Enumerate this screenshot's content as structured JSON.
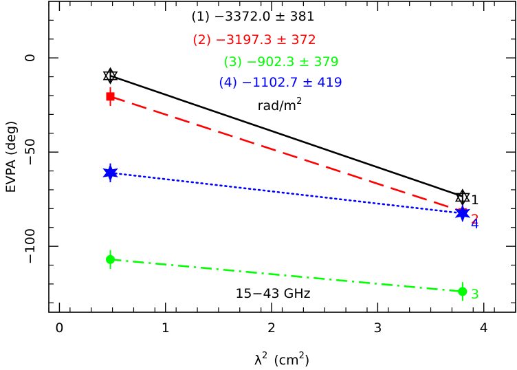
{
  "chart_data": {
    "type": "line",
    "title": "",
    "xlabel": {
      "base": "λ",
      "sup": "2",
      "unit_base": "(cm",
      "unit_sup": "2",
      "unit_close": ")"
    },
    "ylabel": "EVPA (deg)",
    "xlim": [
      -0.1,
      4.3
    ],
    "ylim": [
      -135,
      30
    ],
    "x_ticks": [
      0,
      1,
      2,
      3,
      4
    ],
    "x_tick_labels": [
      "0",
      "1",
      "2",
      "3",
      "4"
    ],
    "y_ticks": [
      0,
      -50,
      -100
    ],
    "y_tick_labels": [
      "0",
      "−50",
      "−100"
    ],
    "grid": false,
    "annotation": "15−43 GHz",
    "rm_unit": {
      "base": "rad/m",
      "sup": "2"
    },
    "series": [
      {
        "label": "1",
        "rm": "(1) −3372.0 ± 381",
        "color": "#000000",
        "dash": "solid",
        "marker": "star6-open",
        "x": [
          0.48,
          3.8
        ],
        "y": [
          -9.5,
          -74
        ],
        "yerr": [
          4,
          4
        ],
        "fit_y": [
          -9.5,
          -73.5
        ]
      },
      {
        "label": "2",
        "rm": "(2) −3197.3 ± 372",
        "color": "#ff0000",
        "dash": "dashed",
        "marker": "square",
        "x": [
          0.48,
          3.8
        ],
        "y": [
          -20.5,
          -82
        ],
        "yerr": [
          5,
          4
        ],
        "fit_y": [
          -20.5,
          -81.5
        ]
      },
      {
        "label": "3",
        "rm": "(3) −902.3 ± 379",
        "color": "#00ff00",
        "dash": "dashdot",
        "marker": "circle",
        "x": [
          0.48,
          3.8
        ],
        "y": [
          -107,
          -124
        ],
        "yerr": [
          5,
          5
        ],
        "fit_y": [
          -107,
          -124
        ]
      },
      {
        "label": "4",
        "rm": "(4) −1102.7 ± 419",
        "color": "#0000ff",
        "dash": "dotted",
        "marker": "star6-filled",
        "x": [
          0.48,
          3.8
        ],
        "y": [
          -61,
          -82.5
        ],
        "yerr": [
          5,
          4
        ],
        "fit_y": [
          -61,
          -82.5
        ]
      }
    ]
  }
}
